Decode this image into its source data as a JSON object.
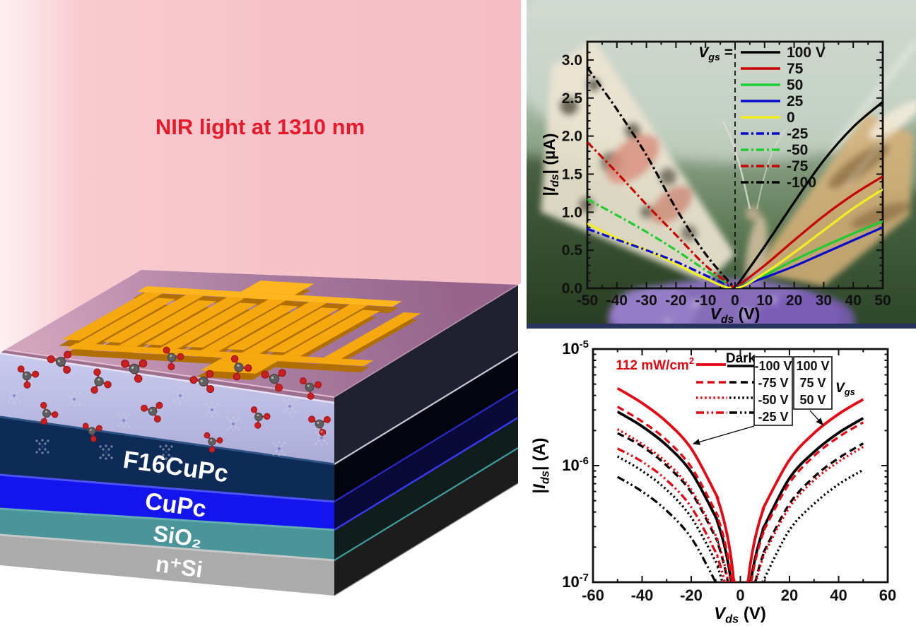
{
  "figure": {
    "beam_label": "NIR light at 1310 nm",
    "beam_color": "#f7c3c9",
    "beam_text_color": "#e51a2b",
    "device_layers": [
      {
        "label": "F16CuPc",
        "color": "#0e2a56"
      },
      {
        "label": "CuPc",
        "color": "#1414ee"
      },
      {
        "label": "SiO₂",
        "color": "#4a9599"
      },
      {
        "label": "n⁺Si",
        "color": "#ababab"
      }
    ],
    "electrode_color": "#f6a90e",
    "top_surface_color": "#a5799c",
    "interlayer_color": "#b9b9e3"
  },
  "chart_data": [
    {
      "type": "line",
      "panel": "top-right",
      "background_note": "blurred butterfly-on-flower photograph",
      "xlabel": "Vds (V)",
      "ylabel": "|Ids| (µA)",
      "xlabel_rich": [
        {
          "t": "V",
          "s": "i"
        },
        {
          "t": "ds",
          "s": "sub",
          "it": 1
        },
        {
          "t": " (V)",
          "s": "n"
        }
      ],
      "ylabel_rich": [
        {
          "t": "|",
          "s": "n"
        },
        {
          "t": "I",
          "s": "i"
        },
        {
          "t": "ds",
          "s": "sub",
          "it": 1
        },
        {
          "t": "| (µA)",
          "s": "n"
        }
      ],
      "xlim": [
        -50,
        50
      ],
      "ylim": [
        0,
        3.25
      ],
      "xticks": [
        -50,
        -40,
        -30,
        -20,
        -10,
        0,
        10,
        20,
        30,
        40,
        50
      ],
      "yticks": [
        0.0,
        0.5,
        1.0,
        1.5,
        2.0,
        2.5,
        3.0
      ],
      "x_minor_step": 5,
      "y_minor_step": 0.1,
      "zero_dashed_line": true,
      "legend_title": "Vgs =",
      "legend_title_rich": [
        {
          "t": "V",
          "s": "i"
        },
        {
          "t": "gs",
          "s": "sub",
          "it": 1
        },
        {
          "t": " =",
          "s": "n"
        }
      ],
      "legend_position": "top inside, right of zero line",
      "series": [
        {
          "name": "100 V",
          "color": "#000000",
          "style": "solid",
          "x": [
            0,
            10,
            20,
            30,
            40,
            50
          ],
          "y": [
            0,
            0.55,
            1.13,
            1.68,
            2.12,
            2.45
          ]
        },
        {
          "name": "75",
          "color": "#c80000",
          "style": "solid",
          "x": [
            0,
            10,
            20,
            30,
            40,
            50
          ],
          "y": [
            0,
            0.3,
            0.63,
            0.95,
            1.23,
            1.47
          ]
        },
        {
          "name": "50",
          "color": "#1ecc2e",
          "style": "solid",
          "x": [
            0,
            10,
            20,
            30,
            40,
            50
          ],
          "y": [
            0,
            0.17,
            0.37,
            0.55,
            0.72,
            0.88
          ]
        },
        {
          "name": "25",
          "color": "#0a0acc",
          "style": "solid",
          "x": [
            0,
            10,
            20,
            30,
            40,
            50
          ],
          "y": [
            0,
            0.14,
            0.29,
            0.46,
            0.63,
            0.8
          ]
        },
        {
          "name": "0",
          "color": "#f2ef1f",
          "style": "solid",
          "x": [
            -50,
            -40,
            -30,
            -20,
            -10,
            0,
            10,
            20,
            30,
            40,
            50
          ],
          "y": [
            0.85,
            0.66,
            0.5,
            0.32,
            0.13,
            0,
            0.2,
            0.47,
            0.76,
            1.05,
            1.3
          ]
        },
        {
          "name": "-25",
          "color": "#0a0acc",
          "style": "dashdot",
          "x": [
            -50,
            -40,
            -30,
            -20,
            -10,
            0
          ],
          "y": [
            0.78,
            0.64,
            0.5,
            0.35,
            0.17,
            0
          ]
        },
        {
          "name": "-50",
          "color": "#1ecc2e",
          "style": "dashdot",
          "x": [
            -50,
            -40,
            -30,
            -20,
            -10,
            0
          ],
          "y": [
            1.17,
            0.96,
            0.74,
            0.5,
            0.24,
            0
          ]
        },
        {
          "name": "-75",
          "color": "#c80000",
          "style": "dashdot",
          "x": [
            -50,
            -40,
            -30,
            -20,
            -10,
            0
          ],
          "y": [
            1.92,
            1.52,
            1.1,
            0.7,
            0.3,
            0
          ]
        },
        {
          "name": "-100",
          "color": "#000000",
          "style": "dashdot",
          "x": [
            -50,
            -40,
            -30,
            -20,
            -10,
            0
          ],
          "y": [
            2.9,
            2.35,
            1.75,
            1.05,
            0.45,
            0
          ]
        }
      ]
    },
    {
      "type": "line",
      "panel": "bottom-right",
      "xlabel": "Vds (V)",
      "ylabel": "|Ids| (A)",
      "xlabel_rich": [
        {
          "t": "V",
          "s": "i"
        },
        {
          "t": "ds",
          "s": "sub",
          "it": 1
        },
        {
          "t": " (V)",
          "s": "n"
        }
      ],
      "ylabel_rich": [
        {
          "t": "|",
          "s": "n"
        },
        {
          "t": "I",
          "s": "i"
        },
        {
          "t": "ds",
          "s": "sub",
          "it": 1
        },
        {
          "t": "| (A)",
          "s": "n"
        }
      ],
      "xlim": [
        -60,
        60
      ],
      "yscale": "log",
      "ylim": [
        1e-07,
        1e-05
      ],
      "xticks": [
        -60,
        -40,
        -20,
        0,
        20,
        40,
        60
      ],
      "x_minor_step": 10,
      "yticks": [
        {
          "base": "10",
          "exp": "-5",
          "value": 1e-05
        },
        {
          "base": "10",
          "exp": "-6",
          "value": 1e-06
        },
        {
          "base": "10",
          "exp": "-7",
          "value": 1e-07
        }
      ],
      "conditions": {
        "illuminated": {
          "label_rich": [
            {
              "t": "112 mW/cm",
              "s": "n"
            },
            {
              "t": "2",
              "s": "sup"
            }
          ],
          "label": "112 mW/cm2",
          "color": "#e30613"
        },
        "dark": {
          "label": "Dark",
          "color": "#000000"
        }
      },
      "gate_label": "Vgs",
      "gate_label_rich": [
        {
          "t": "V",
          "s": "i"
        },
        {
          "t": "gs",
          "s": "sub",
          "it": 1
        }
      ],
      "gate_voltages_negative": [
        "-100 V",
        "-75 V",
        "-50 V",
        "-25 V"
      ],
      "gate_voltages_positive": [
        "100 V",
        "75 V",
        "50 V"
      ],
      "line_style_meaning": {
        "solid": "±100 V",
        "dashed": "±75 V",
        "dotted": "±50 V",
        "dashdotdot": "-25 V"
      },
      "series": [
        {
          "name": "112 mW/cm2, Vgs = -100 V",
          "condition": "illuminated",
          "color": "#e30613",
          "style": "solid",
          "x": [
            -50,
            -40,
            -30,
            -20,
            -10
          ],
          "y": [
            4.6e-06,
            3.44e-06,
            2.37e-06,
            1.4e-06,
            5.7e-07
          ]
        },
        {
          "name": "Dark, Vgs = -100 V",
          "condition": "dark",
          "color": "#000000",
          "style": "solid",
          "x": [
            -50,
            -40,
            -30,
            -20,
            -10
          ],
          "y": [
            2.9e-06,
            2.17e-06,
            1.49e-06,
            8.8e-07,
            3.6e-07
          ]
        },
        {
          "name": "112 mW/cm2, Vgs = -75 V",
          "condition": "illuminated",
          "color": "#e30613",
          "style": "dashed",
          "x": [
            -50,
            -40,
            -30,
            -20,
            -10
          ],
          "y": [
            3.2e-06,
            2.39e-06,
            1.65e-06,
            9.7e-07,
            4e-07
          ]
        },
        {
          "name": "Dark, Vgs = -75 V",
          "condition": "dark",
          "color": "#000000",
          "style": "dashed",
          "x": [
            -50,
            -40,
            -30,
            -20,
            -10
          ],
          "y": [
            1.9e-06,
            1.46e-06,
            1e-06,
            5.9e-07,
            2.4e-07
          ]
        },
        {
          "name": "112 mW/cm2, Vgs = -50 V",
          "condition": "illuminated",
          "color": "#e30613",
          "style": "dotted",
          "x": [
            -50,
            -40,
            -30,
            -20,
            -10
          ],
          "y": [
            2.05e-06,
            1.53e-06,
            1.06e-06,
            6.2e-07,
            2.5e-07
          ]
        },
        {
          "name": "Dark, Vgs = -50 V",
          "condition": "dark",
          "color": "#000000",
          "style": "dotted",
          "x": [
            -50,
            -40,
            -30,
            -20,
            -10
          ],
          "y": [
            1.2e-06,
            9e-07,
            6.2e-07,
            3.6e-07,
            1.5e-07
          ]
        },
        {
          "name": "112 mW/cm2, Vgs = -25 V",
          "condition": "illuminated",
          "color": "#e30613",
          "style": "dashdotdot",
          "x": [
            -50,
            -40,
            -30,
            -20,
            -10
          ],
          "y": [
            1.4e-06,
            1.08e-06,
            7.5e-07,
            4.4e-07,
            1.8e-07
          ]
        },
        {
          "name": "Dark, Vgs = -25 V",
          "condition": "dark",
          "color": "#000000",
          "style": "dashdotdot",
          "x": [
            -50,
            -40,
            -30,
            -20,
            -10
          ],
          "y": [
            8e-07,
            6e-07,
            4.1e-07,
            2.4e-07,
            1e-07
          ]
        },
        {
          "name": "112 mW/cm2, Vgs = 100 V",
          "condition": "illuminated",
          "color": "#e30613",
          "style": "solid",
          "x": [
            10,
            20,
            30,
            40,
            50
          ],
          "y": [
            4.6e-07,
            1.12e-06,
            1.9e-06,
            2.77e-06,
            3.7e-06
          ]
        },
        {
          "name": "Dark, Vgs = 100 V",
          "condition": "dark",
          "color": "#000000",
          "style": "solid",
          "x": [
            10,
            20,
            30,
            40,
            50
          ],
          "y": [
            3.1e-07,
            7.8e-07,
            1.31e-06,
            1.91e-06,
            2.55e-06
          ]
        },
        {
          "name": "112 mW/cm2, Vgs = 75 V",
          "condition": "illuminated",
          "color": "#e30613",
          "style": "dashed",
          "x": [
            10,
            20,
            30,
            40,
            50
          ],
          "y": [
            2.9e-07,
            7.1e-07,
            1.21e-06,
            1.76e-06,
            2.35e-06
          ]
        },
        {
          "name": "Dark, Vgs = 75 V",
          "condition": "dark",
          "color": "#000000",
          "style": "dashed",
          "x": [
            10,
            20,
            30,
            40,
            50
          ],
          "y": [
            1.9e-07,
            4.7e-07,
            8e-07,
            1.16e-06,
            1.55e-06
          ]
        },
        {
          "name": "112 mW/cm2, Vgs = 50 V",
          "condition": "illuminated",
          "color": "#e30613",
          "style": "dotted",
          "x": [
            10,
            20,
            30,
            40,
            50
          ],
          "y": [
            1.8e-07,
            4.4e-07,
            7.5e-07,
            1.08e-06,
            1.45e-06
          ]
        },
        {
          "name": "Dark, Vgs = 50 V",
          "condition": "dark",
          "color": "#000000",
          "style": "dotted",
          "x": [
            10,
            20,
            30,
            40,
            50
          ],
          "y": [
            1.1e-07,
            2.8e-07,
            4.7e-07,
            6.9e-07,
            9.2e-07
          ]
        }
      ]
    }
  ]
}
